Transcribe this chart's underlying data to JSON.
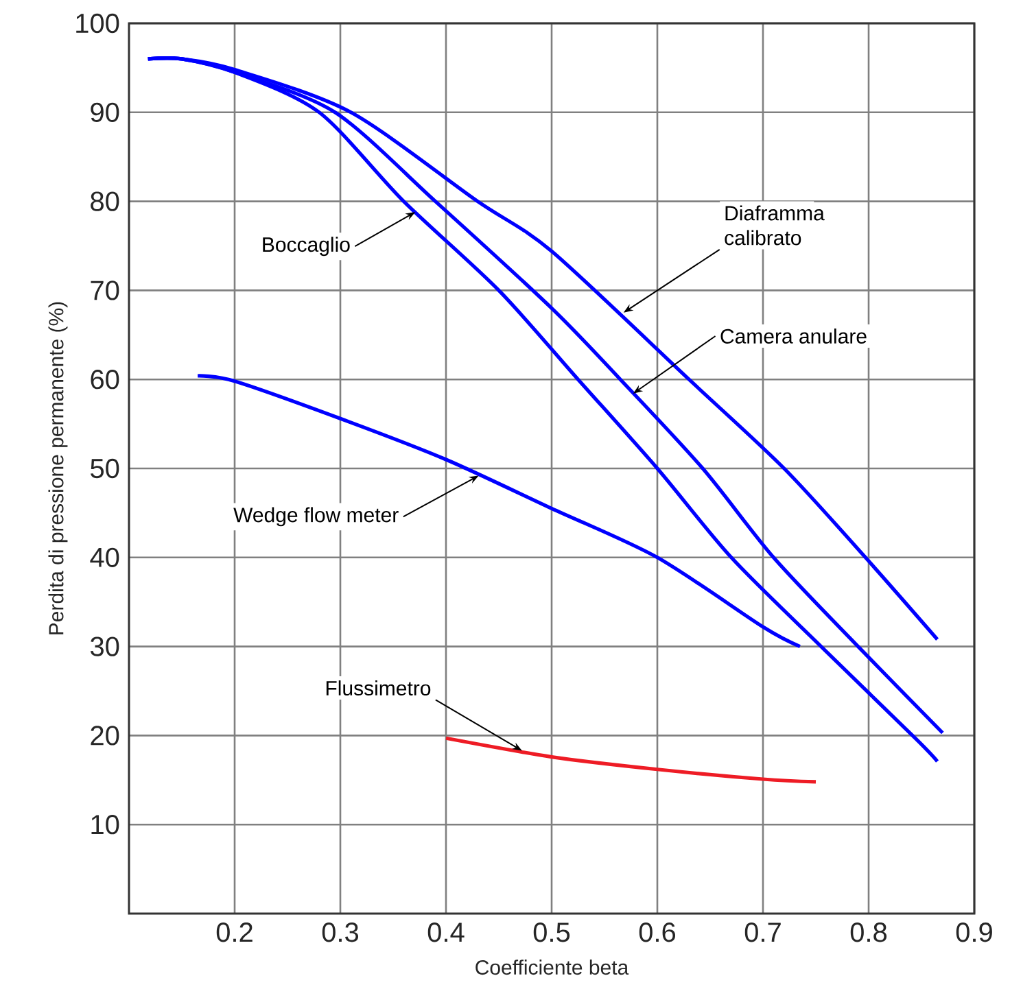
{
  "chart_data": {
    "type": "line",
    "xlabel": "Coefficiente beta",
    "ylabel": "Perdita di pressione permanente (%)",
    "xlim": [
      0.1,
      0.9
    ],
    "ylim": [
      0,
      100
    ],
    "xticks": [
      0.2,
      0.3,
      0.4,
      0.5,
      0.6,
      0.7,
      0.8,
      0.9
    ],
    "yticks": [
      10,
      20,
      30,
      40,
      50,
      60,
      70,
      80,
      90,
      100
    ],
    "grid": true,
    "series": [
      {
        "color": "#0000ff",
        "x": [
          0.118,
          0.15,
          0.2,
          0.31,
          0.43,
          0.5,
          0.63,
          0.72,
          0.797,
          0.865
        ],
        "values": [
          96,
          96,
          94.8,
          90,
          80,
          74.4,
          60,
          50,
          40,
          30.8
        ]
      },
      {
        "color": "#0000ff",
        "x": [
          0.118,
          0.15,
          0.2,
          0.295,
          0.39,
          0.5,
          0.565,
          0.643,
          0.71,
          0.79,
          0.87
        ],
        "values": [
          96,
          96,
          94.5,
          90,
          80,
          68,
          60,
          50,
          40,
          30,
          20.3
        ]
      },
      {
        "color": "#0000ff",
        "x": [
          0.118,
          0.15,
          0.2,
          0.28,
          0.36,
          0.45,
          0.525,
          0.6,
          0.67,
          0.755,
          0.845,
          0.865
        ],
        "values": [
          96,
          96,
          94.5,
          90,
          80,
          70,
          60,
          50,
          40,
          30,
          19.6,
          17.1
        ]
      },
      {
        "color": "#0000ff",
        "x": [
          0.165,
          0.2,
          0.3,
          0.4,
          0.5,
          0.6,
          0.7,
          0.735
        ],
        "values": [
          60.4,
          59.8,
          55.6,
          51,
          45.5,
          40,
          32.2,
          30
        ]
      },
      {
        "color": "#ee1c25",
        "x": [
          0.4,
          0.5,
          0.6,
          0.7,
          0.75
        ],
        "values": [
          19.7,
          17.6,
          16.2,
          15.1,
          14.8
        ]
      }
    ],
    "annotations": [
      {
        "text": "Diaframma calibrato",
        "x": 0.568,
        "y": 67.5
      },
      {
        "text": "Camera anulare",
        "x": 0.577,
        "y": 58.4
      },
      {
        "text": "Boccaglio",
        "x": 0.371,
        "y": 78.8
      },
      {
        "text": "Wedge flow meter",
        "x": 0.431,
        "y": 49.2
      },
      {
        "text": "Flussimetro",
        "x": 0.472,
        "y": 18.3
      }
    ]
  }
}
